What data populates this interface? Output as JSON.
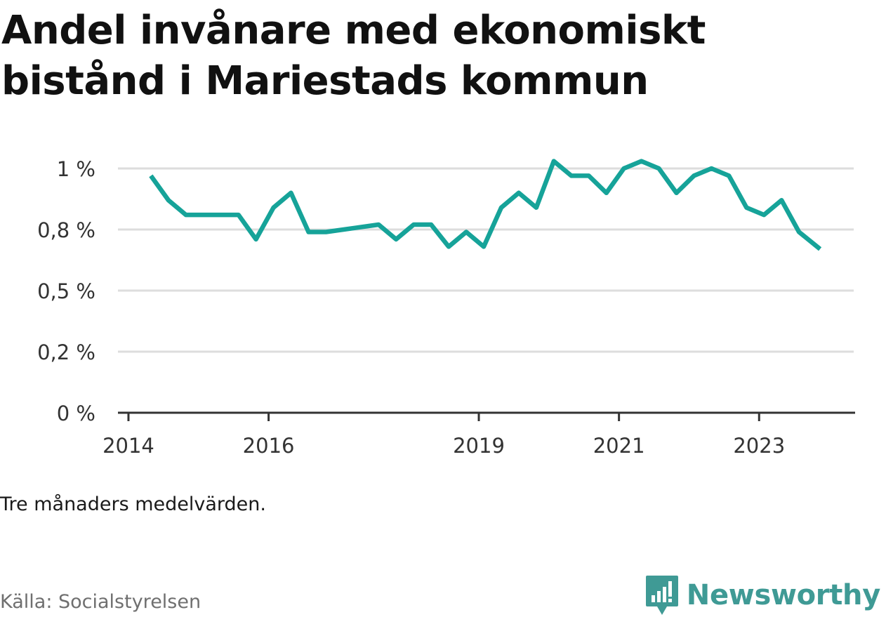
{
  "title": "Andel invånare med ekonomiskt bistånd i Mariestads kommun",
  "note": "Tre månaders medelvärden.",
  "source": "Källa: Socialstyrelsen",
  "brand": {
    "name": "Newsworthy",
    "icon": "newsworthy-logo-icon",
    "color": "#3f9a95"
  },
  "chart_data": {
    "type": "line",
    "title": "Andel invånare med ekonomiskt bistånd i Mariestads kommun",
    "xlabel": "",
    "ylabel": "",
    "y_tick_labels": [
      "0 %",
      "0,2 %",
      "0,5 %",
      "0,8 %",
      "1 %"
    ],
    "y_tick_values": [
      0,
      0.25,
      0.5,
      0.75,
      1.0
    ],
    "ylim": [
      0,
      1.0
    ],
    "x_tick_labels": [
      "2014",
      "2016",
      "2019",
      "2021",
      "2023"
    ],
    "x_tick_values": [
      2014.0,
      2016.0,
      2019.0,
      2021.0,
      2023.0
    ],
    "xlim": [
      2013.85,
      2024.35
    ],
    "grid": true,
    "line_color": "#16a399",
    "series": [
      {
        "x": [
          2014.32,
          2014.57,
          2014.82,
          2015.07,
          2015.32,
          2015.57,
          2015.82,
          2016.07,
          2016.32,
          2016.57,
          2016.82,
          2017.57,
          2017.82,
          2018.07,
          2018.32,
          2018.57,
          2018.82,
          2019.07,
          2019.32,
          2019.57,
          2019.82,
          2020.07,
          2020.32,
          2020.57,
          2020.82,
          2021.07,
          2021.32,
          2021.57,
          2021.82,
          2022.07,
          2022.32,
          2022.57,
          2022.82,
          2023.07,
          2023.32,
          2023.57,
          2023.87
        ],
        "values": [
          0.97,
          0.87,
          0.81,
          0.81,
          0.81,
          0.81,
          0.71,
          0.84,
          0.9,
          0.74,
          0.74,
          0.77,
          0.71,
          0.77,
          0.77,
          0.68,
          0.74,
          0.68,
          0.84,
          0.9,
          0.84,
          1.03,
          0.97,
          0.97,
          0.9,
          1.0,
          1.03,
          1.0,
          0.9,
          0.97,
          1.0,
          0.97,
          0.84,
          0.81,
          0.87,
          0.74,
          0.67
        ]
      }
    ]
  }
}
